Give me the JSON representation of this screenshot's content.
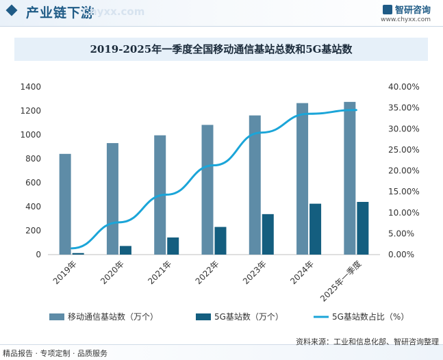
{
  "header": {
    "title": "产业链下游",
    "watermark": "Chyxx.com",
    "brand_name": "智研咨询",
    "brand_url": "www.chyxx.com"
  },
  "chart_data": {
    "type": "bar",
    "title": "2019-2025年一季度全国移动通信基站总数和5G基站数",
    "categories": [
      "2019年",
      "2020年",
      "2021年",
      "2022年",
      "2023年",
      "2024年",
      "2025年一季度"
    ],
    "series": [
      {
        "name": "移动通信基站数（万个）",
        "kind": "bar",
        "axis": "left",
        "color": "#5e8ca7",
        "values": [
          841,
          931,
          996,
          1083,
          1162,
          1265,
          1275
        ]
      },
      {
        "name": "5G基站数（万个）",
        "kind": "bar",
        "axis": "left",
        "color": "#145e7f",
        "values": [
          13,
          72,
          143,
          231,
          338,
          425,
          440
        ]
      },
      {
        "name": "5G基站数占比（%）",
        "kind": "line",
        "axis": "right",
        "color": "#1ba5d8",
        "values": [
          1.5,
          7.7,
          14.3,
          21.3,
          29.1,
          33.6,
          34.5
        ]
      }
    ],
    "y_left": {
      "min": 0,
      "max": 1400,
      "ticks": [
        "0",
        "200",
        "400",
        "600",
        "800",
        "1000",
        "1200",
        "1400"
      ]
    },
    "y_right": {
      "min": 0,
      "max": 40,
      "ticks": [
        "0.00%",
        "5.00%",
        "10.00%",
        "15.00%",
        "20.00%",
        "25.00%",
        "30.00%",
        "35.00%",
        "40.00%"
      ]
    },
    "grid": false,
    "legend_position": "bottom"
  },
  "footer": {
    "left": "精品报告 · 专项定制 · 品质服务",
    "source": "资料来源：工业和信息化部、智研咨询整理"
  }
}
